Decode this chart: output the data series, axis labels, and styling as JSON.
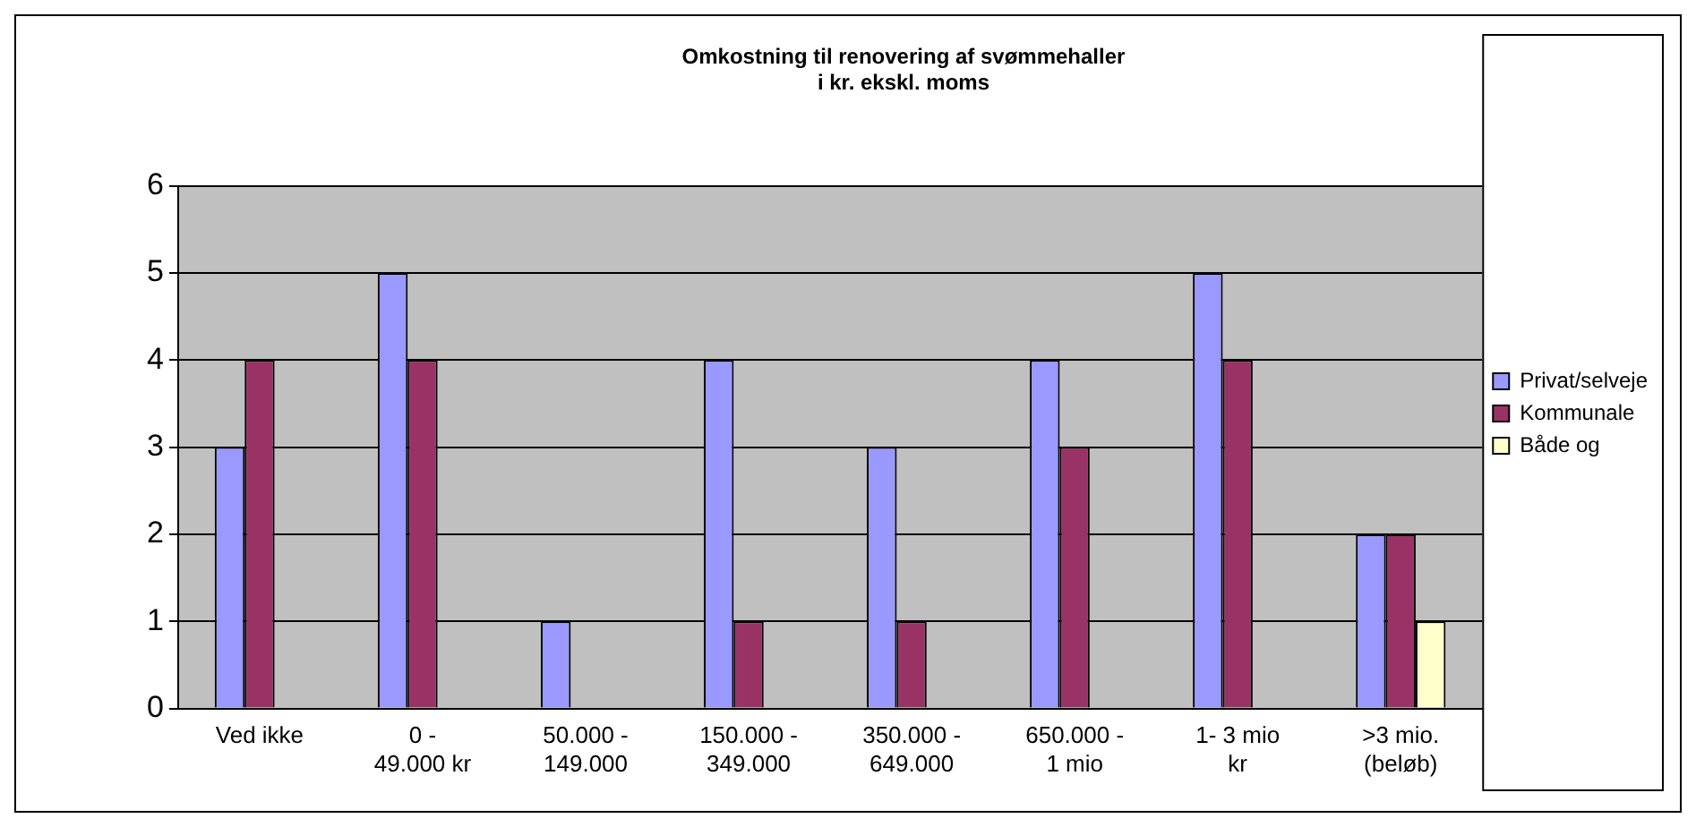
{
  "chart_data": {
    "type": "bar",
    "title": "Omkostning til renovering af svømmehaller\ni kr. ekskl. moms",
    "categories": [
      "Ved ikke",
      "0 - 49.000 kr",
      "50.000 - 149.000",
      "150.000 - 349.000",
      "350.000 - 649.000",
      "650.000 - 1 mio",
      "1- 3 mio kr",
      ">3 mio. (beløb)"
    ],
    "series": [
      {
        "name": "Privat/selveje",
        "color": "#9999ff",
        "values": [
          3,
          5,
          1,
          4,
          3,
          4,
          5,
          2
        ]
      },
      {
        "name": "Kommunale",
        "color": "#993366",
        "values": [
          4,
          4,
          0,
          1,
          1,
          3,
          4,
          2
        ]
      },
      {
        "name": "Både og",
        "color": "#ffffcc",
        "values": [
          0,
          0,
          0,
          0,
          0,
          0,
          0,
          1
        ]
      }
    ],
    "ylim": [
      0,
      6
    ],
    "yticks": [
      0,
      1,
      2,
      3,
      4,
      5,
      6
    ],
    "grid": "y",
    "legend": "right"
  }
}
